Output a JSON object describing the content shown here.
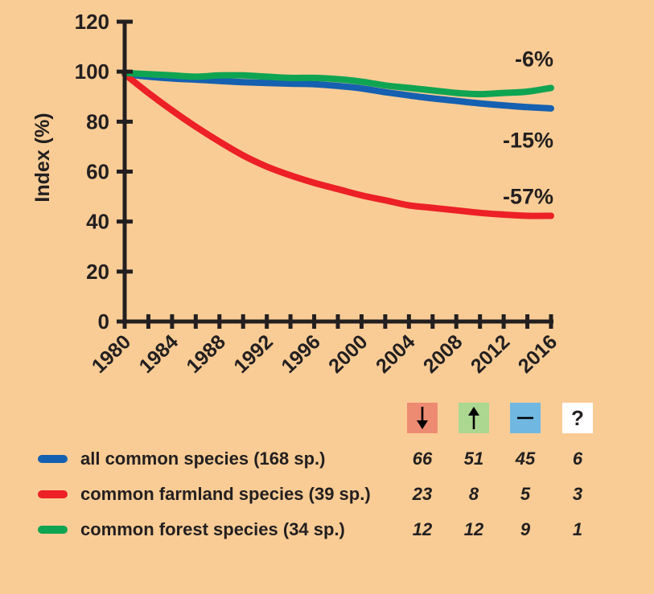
{
  "background_color": "#F9CC95",
  "text_color": "#231F20",
  "axis_color": "#231F20",
  "chart_data": {
    "type": "line",
    "title": "",
    "ylabel": "Index (%)",
    "xlabel": "",
    "ylim": [
      0,
      120
    ],
    "yticks": [
      0,
      20,
      40,
      60,
      80,
      100,
      120
    ],
    "x": [
      1980,
      1982,
      1984,
      1986,
      1988,
      1990,
      1992,
      1994,
      1996,
      1998,
      2000,
      2002,
      2004,
      2006,
      2008,
      2010,
      2012,
      2014,
      2016
    ],
    "xtick_labels": [
      "1980",
      "1984",
      "1988",
      "1992",
      "1996",
      "2000",
      "2004",
      "2008",
      "2012",
      "2016"
    ],
    "grid": false,
    "legend_position": "bottom",
    "series": [
      {
        "name": "all common species (168 sp.)",
        "color": "#1560B0",
        "values": [
          99,
          98,
          97.3,
          96.8,
          96.3,
          95.8,
          95.5,
          95.2,
          95,
          94.3,
          93.3,
          91.8,
          90.5,
          89.3,
          88.3,
          87.3,
          86.5,
          85.8,
          85.3
        ],
        "end_change_label": "-15%"
      },
      {
        "name": "common farmland species (39 sp.)",
        "color": "#EC2026",
        "values": [
          99,
          91.5,
          84.5,
          78,
          72,
          66.5,
          62,
          58.5,
          55.5,
          53,
          50.5,
          48.5,
          46.5,
          45.5,
          44.5,
          43.5,
          42.8,
          42.3,
          42.3
        ],
        "end_change_label": "-57%"
      },
      {
        "name": "common forest species (34 sp.)",
        "color": "#0FA452",
        "values": [
          99.5,
          99,
          98.5,
          98,
          98.5,
          98.5,
          98,
          97.5,
          97.5,
          97,
          96,
          94.5,
          93.5,
          92.5,
          91.5,
          91,
          91.5,
          92,
          93.5
        ],
        "end_change_label": "-6%"
      }
    ],
    "annotations": [
      {
        "text": "-6%",
        "y_value": 105
      },
      {
        "text": "-15%",
        "y_value": 72.5
      },
      {
        "text": "-57%",
        "y_value": 50
      }
    ]
  },
  "legend": {
    "header_icons": [
      {
        "icon": "arrow-down-icon",
        "box_color": "#ED8A72"
      },
      {
        "icon": "arrow-up-icon",
        "box_color": "#ABD791"
      },
      {
        "icon": "dash-icon",
        "box_color": "#70B8E2"
      },
      {
        "icon": "question-mark",
        "box_color": "#FFFFFF",
        "label": "?"
      }
    ],
    "rows": [
      {
        "label": "all common species (168 sp.)",
        "swatch_color": "#1560B0",
        "counts": [
          "66",
          "51",
          "45",
          "6"
        ]
      },
      {
        "label": "common farmland species (39 sp.)",
        "swatch_color": "#EC2026",
        "counts": [
          "23",
          "8",
          "5",
          "3"
        ]
      },
      {
        "label": "common forest species (34 sp.)",
        "swatch_color": "#0FA452",
        "counts": [
          "12",
          "12",
          "9",
          "1"
        ]
      }
    ]
  }
}
